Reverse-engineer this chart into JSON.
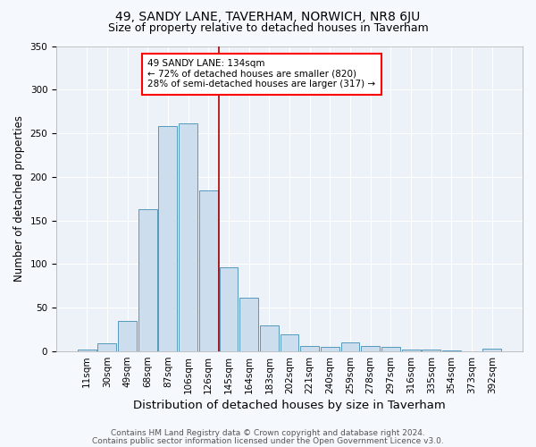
{
  "title": "49, SANDY LANE, TAVERHAM, NORWICH, NR8 6JU",
  "subtitle": "Size of property relative to detached houses in Taverham",
  "xlabel": "Distribution of detached houses by size in Taverham",
  "ylabel": "Number of detached properties",
  "bar_labels": [
    "11sqm",
    "30sqm",
    "49sqm",
    "68sqm",
    "87sqm",
    "106sqm",
    "126sqm",
    "145sqm",
    "164sqm",
    "183sqm",
    "202sqm",
    "221sqm",
    "240sqm",
    "259sqm",
    "278sqm",
    "297sqm",
    "316sqm",
    "335sqm",
    "354sqm",
    "373sqm",
    "392sqm"
  ],
  "bar_values": [
    2,
    9,
    35,
    163,
    258,
    261,
    185,
    96,
    62,
    30,
    20,
    6,
    5,
    10,
    6,
    5,
    2,
    2,
    1,
    0,
    3
  ],
  "bar_color": "#ccdded",
  "bar_edge_color": "#5599bb",
  "vline_color": "#aa0000",
  "vline_x_index": 6.5,
  "annotation_text": "49 SANDY LANE: 134sqm\n← 72% of detached houses are smaller (820)\n28% of semi-detached houses are larger (317) →",
  "footer1": "Contains HM Land Registry data © Crown copyright and database right 2024.",
  "footer2": "Contains public sector information licensed under the Open Government Licence v3.0.",
  "ylim": [
    0,
    350
  ],
  "bg_color": "#f5f8fc",
  "plot_bg_color": "#edf2f8",
  "grid_color": "#ffffff",
  "title_fontsize": 10,
  "subtitle_fontsize": 9,
  "xlabel_fontsize": 9.5,
  "ylabel_fontsize": 8.5,
  "tick_fontsize": 7.5,
  "footer_fontsize": 6.5,
  "annot_fontsize": 7.5
}
